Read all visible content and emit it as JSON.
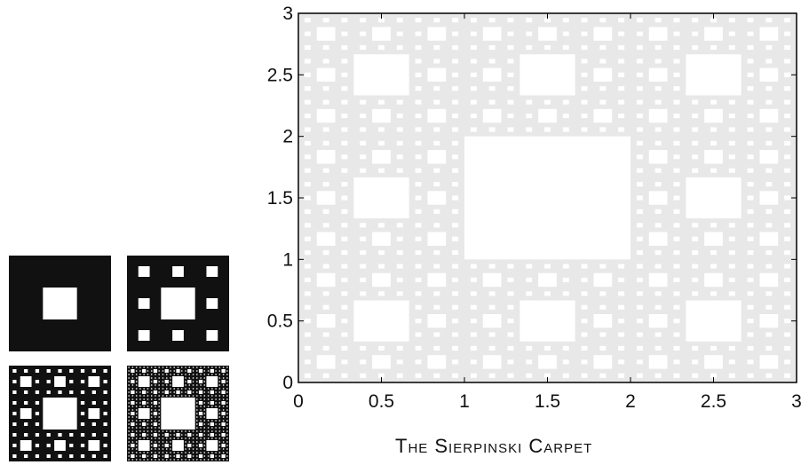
{
  "caption": "The Sierpinski Carpet",
  "colors": {
    "fill": "#111111",
    "carpet_light": "#e8e8e8",
    "axis": "#000000"
  },
  "iterations": [
    {
      "level": 1
    },
    {
      "level": 2
    },
    {
      "level": 3
    },
    {
      "level": 4
    }
  ],
  "chart_data": {
    "type": "scatter",
    "title": "",
    "xlabel": "",
    "ylabel": "",
    "xlim": [
      0,
      3
    ],
    "ylim": [
      0,
      3
    ],
    "x_ticks": [
      0,
      0.5,
      1,
      1.5,
      2,
      2.5,
      3
    ],
    "y_ticks": [
      0,
      0.5,
      1,
      1.5,
      2,
      2.5,
      3
    ],
    "x_tick_labels": [
      "0",
      "0.5",
      "1",
      "1.5",
      "2",
      "2.5",
      "3"
    ],
    "y_tick_labels": [
      "0",
      "0.5",
      "1",
      "1.5",
      "2",
      "2.5",
      "3"
    ],
    "fractal": "sierpinski-carpet",
    "carpet_extent": [
      0,
      3
    ],
    "largest_hole": {
      "x": [
        1,
        2
      ],
      "y": [
        1,
        2
      ]
    },
    "depth_shown": 4,
    "grid": false
  }
}
